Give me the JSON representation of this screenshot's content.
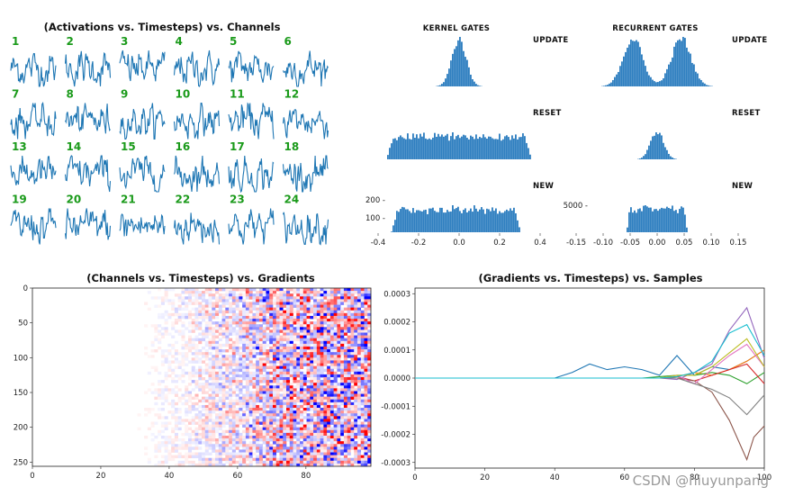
{
  "chart_data": [
    {
      "type": "line",
      "title": "(Activations vs. Timesteps) vs. Channels",
      "channels": [
        "1",
        "2",
        "3",
        "4",
        "5",
        "6",
        "7",
        "8",
        "9",
        "10",
        "11",
        "12",
        "13",
        "14",
        "15",
        "16",
        "17",
        "18",
        "19",
        "20",
        "21",
        "22",
        "23",
        "24"
      ],
      "grid_rows": 4,
      "grid_cols": 6,
      "color": "#1f77b4",
      "label_color": "#1a9a1a"
    },
    {
      "type": "bar",
      "kind": "histogram grid",
      "column_titles": [
        "KERNEL GATES",
        "RECURRENT GATES"
      ],
      "row_titles": [
        "UPDATE",
        "RESET",
        "NEW"
      ],
      "color": "#2f7fc0",
      "kernel_xlim": [
        -0.4,
        0.4
      ],
      "kernel_xticks": [
        "-0.4",
        "-0.2",
        "0.0",
        "0.2",
        "0.4"
      ],
      "kernel_yticks": [
        "200",
        "100"
      ],
      "recurrent_xlim": [
        -0.15,
        0.15
      ],
      "recurrent_xticks": [
        "-0.15",
        "-0.10",
        "-0.05",
        "0.00",
        "0.05",
        "0.10",
        "0.15"
      ],
      "recurrent_yticks": [
        "5000"
      ],
      "distributions": {
        "kernel_update": {
          "shape": "peaked",
          "center": 0.0,
          "spread": 0.035
        },
        "kernel_reset": {
          "shape": "uniform",
          "range": [
            -0.32,
            0.32
          ]
        },
        "kernel_new": {
          "shape": "uniform",
          "range": [
            -0.3,
            0.27
          ]
        },
        "recurrent_update": {
          "shape": "bimodal",
          "peaks": [
            -0.045,
            0.045
          ]
        },
        "recurrent_reset": {
          "shape": "peaked",
          "center": 0.0,
          "spread": 0.012
        },
        "recurrent_new": {
          "shape": "uniform",
          "range": [
            -0.05,
            0.05
          ]
        }
      }
    },
    {
      "type": "heatmap",
      "title": "(Channels vs. Timesteps) vs. Gradients",
      "xlabel": "",
      "ylabel": "",
      "xlim": [
        0,
        99
      ],
      "ylim": [
        256,
        0
      ],
      "xticks": [
        "0",
        "20",
        "40",
        "60",
        "80"
      ],
      "yticks": [
        "0",
        "50",
        "100",
        "150",
        "200",
        "250"
      ],
      "colormap": "bwr",
      "intensity_profile": {
        "timesteps": [
          0,
          30,
          45,
          60,
          75,
          99
        ],
        "magnitude": [
          0.0,
          0.02,
          0.15,
          0.4,
          0.85,
          1.0
        ]
      }
    },
    {
      "type": "line",
      "title": "(Gradients vs. Timesteps) vs. Samples",
      "xlabel": "",
      "ylabel": "",
      "xlim": [
        0,
        100
      ],
      "ylim": [
        -0.00032,
        0.00032
      ],
      "xticks": [
        "0",
        "20",
        "40",
        "60",
        "80",
        "100"
      ],
      "yticks": [
        "0.0003",
        "0.0002",
        "0.0001",
        "0.0000",
        "-0.0001",
        "-0.0002",
        "-0.0003"
      ],
      "series": [
        {
          "color": "#1f77b4",
          "x": [
            0,
            40,
            45,
            50,
            55,
            60,
            65,
            70,
            75,
            80,
            85,
            90,
            95,
            100
          ],
          "y": [
            0,
            0,
            2e-05,
            5e-05,
            3e-05,
            4e-05,
            3e-05,
            1e-05,
            8e-05,
            1e-05,
            4e-05,
            3e-05,
            6e-05,
            0.0001
          ]
        },
        {
          "color": "#ff7f0e",
          "x": [
            0,
            70,
            75,
            80,
            85,
            90,
            95,
            100
          ],
          "y": [
            0,
            0,
            5e-06,
            2e-05,
            1e-05,
            3e-05,
            6e-05,
            0.0001
          ]
        },
        {
          "color": "#2ca02c",
          "x": [
            0,
            65,
            70,
            75,
            80,
            85,
            90,
            95,
            100
          ],
          "y": [
            0,
            0,
            5e-06,
            1e-05,
            1e-05,
            2e-05,
            1e-05,
            -2e-05,
            2e-05
          ]
        },
        {
          "color": "#d62728",
          "x": [
            0,
            70,
            75,
            80,
            85,
            90,
            95,
            100
          ],
          "y": [
            0,
            0,
            5e-06,
            -1e-05,
            1e-05,
            3e-05,
            5e-05,
            -2e-05
          ]
        },
        {
          "color": "#9467bd",
          "x": [
            0,
            70,
            75,
            80,
            85,
            90,
            95,
            100
          ],
          "y": [
            0,
            0,
            -5e-06,
            2e-05,
            5e-05,
            0.00017,
            0.00025,
            7e-05
          ]
        },
        {
          "color": "#8c564b",
          "x": [
            0,
            75,
            80,
            85,
            90,
            95,
            97,
            100
          ],
          "y": [
            0,
            0,
            -1e-05,
            -5e-05,
            -0.00015,
            -0.00029,
            -0.00021,
            -0.00017
          ]
        },
        {
          "color": "#e377c2",
          "x": [
            0,
            70,
            75,
            80,
            85,
            90,
            95,
            100
          ],
          "y": [
            0,
            0,
            1e-05,
            -2e-05,
            3e-05,
            8e-05,
            0.00012,
            4e-05
          ]
        },
        {
          "color": "#7f7f7f",
          "x": [
            0,
            75,
            80,
            85,
            90,
            95,
            100
          ],
          "y": [
            0,
            0,
            -2e-05,
            -4e-05,
            -7e-05,
            -0.00013,
            -6e-05
          ]
        },
        {
          "color": "#bcbd22",
          "x": [
            0,
            70,
            75,
            80,
            85,
            90,
            95,
            100
          ],
          "y": [
            0,
            0,
            1e-05,
            1e-05,
            4e-05,
            9e-05,
            0.00014,
            4e-05
          ]
        },
        {
          "color": "#17becf",
          "x": [
            0,
            70,
            75,
            80,
            85,
            90,
            95,
            100
          ],
          "y": [
            0,
            0,
            5e-06,
            2e-05,
            6e-05,
            0.00016,
            0.00019,
            8e-05
          ]
        }
      ]
    }
  ],
  "watermark": "CSDN @niuyunpang"
}
